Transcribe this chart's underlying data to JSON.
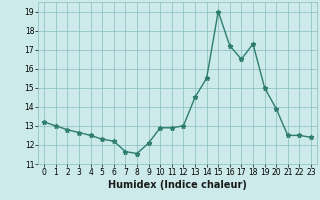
{
  "x": [
    0,
    1,
    2,
    3,
    4,
    5,
    6,
    7,
    8,
    9,
    10,
    11,
    12,
    13,
    14,
    15,
    16,
    17,
    18,
    19,
    20,
    21,
    22,
    23
  ],
  "y": [
    13.2,
    13.0,
    12.8,
    12.65,
    12.5,
    12.3,
    12.2,
    11.65,
    11.55,
    12.1,
    12.9,
    12.9,
    13.0,
    14.5,
    15.5,
    19.0,
    17.2,
    16.5,
    17.3,
    15.0,
    13.9,
    12.5,
    12.5,
    12.4
  ],
  "xlabel": "Humidex (Indice chaleur)",
  "xlim": [
    -0.5,
    23.5
  ],
  "ylim": [
    11,
    19.5
  ],
  "yticks": [
    11,
    12,
    13,
    14,
    15,
    16,
    17,
    18,
    19
  ],
  "xticks": [
    0,
    1,
    2,
    3,
    4,
    5,
    6,
    7,
    8,
    9,
    10,
    11,
    12,
    13,
    14,
    15,
    16,
    17,
    18,
    19,
    20,
    21,
    22,
    23
  ],
  "line_color": "#2e7d6e",
  "marker": "*",
  "markersize": 3.5,
  "linewidth": 1.0,
  "bg_color": "#cceaea",
  "grid_color": "#88bbbb",
  "tick_fontsize": 5.5,
  "xlabel_fontsize": 7
}
